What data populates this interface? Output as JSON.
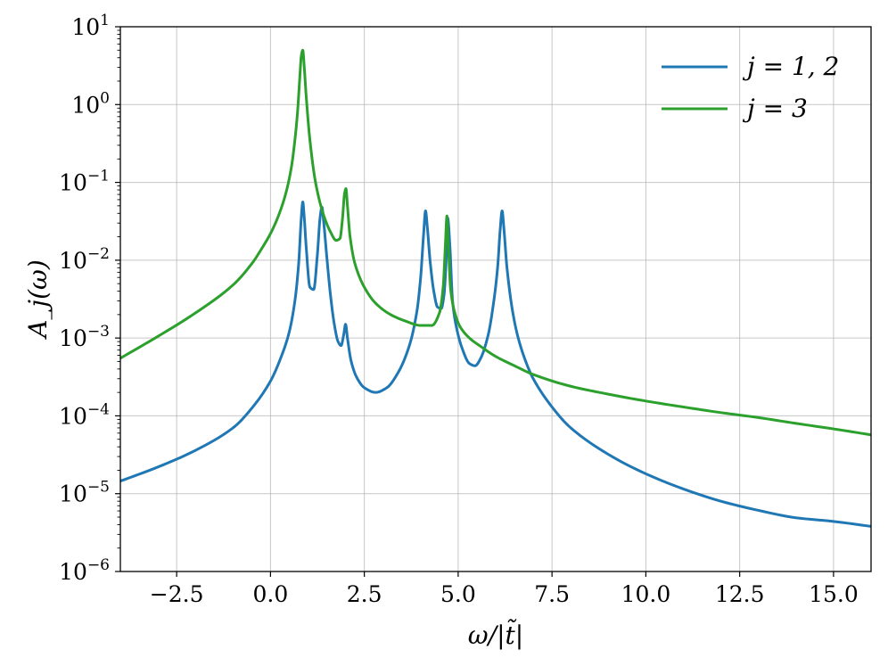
{
  "chart_data": {
    "type": "line",
    "title": "",
    "xlabel": "ω/|t̃|",
    "ylabel": "A_j(ω)",
    "xlim": [
      -4.0,
      16.0
    ],
    "ylim": [
      1e-06,
      10
    ],
    "yscale": "log",
    "grid": true,
    "legend_placement": "top-right",
    "x_ticks": [
      {
        "value": -2.5,
        "label": "−2.5"
      },
      {
        "value": 0.0,
        "label": "0.0"
      },
      {
        "value": 2.5,
        "label": "2.5"
      },
      {
        "value": 5.0,
        "label": "5.0"
      },
      {
        "value": 7.5,
        "label": "7.5"
      },
      {
        "value": 10.0,
        "label": "10.0"
      },
      {
        "value": 12.5,
        "label": "12.5"
      },
      {
        "value": 15.0,
        "label": "15.0"
      }
    ],
    "y_ticks": [
      {
        "value": 1e-06,
        "base": "10",
        "exp": "−6"
      },
      {
        "value": 1e-05,
        "base": "10",
        "exp": "−5"
      },
      {
        "value": 0.0001,
        "base": "10",
        "exp": "−4"
      },
      {
        "value": 0.001,
        "base": "10",
        "exp": "−3"
      },
      {
        "value": 0.01,
        "base": "10",
        "exp": "−2"
      },
      {
        "value": 0.1,
        "base": "10",
        "exp": "−1"
      },
      {
        "value": 1,
        "base": "10",
        "exp": "0"
      },
      {
        "value": 10,
        "base": "10",
        "exp": "1"
      }
    ],
    "series": [
      {
        "name": "j = 1, 2",
        "color": "#1f77b4",
        "x": [
          -4.0,
          -3.0,
          -2.0,
          -1.0,
          -0.5,
          0.0,
          0.3,
          0.5,
          0.65,
          0.75,
          0.82,
          0.86,
          0.9,
          0.95,
          1.05,
          1.15,
          1.25,
          1.32,
          1.37,
          1.42,
          1.5,
          1.6,
          1.7,
          1.8,
          1.88,
          1.95,
          2.0,
          2.05,
          2.15,
          2.3,
          2.5,
          2.8,
          3.1,
          3.4,
          3.7,
          3.9,
          4.0,
          4.08,
          4.13,
          4.18,
          4.25,
          4.35,
          4.45,
          4.55,
          4.62,
          4.67,
          4.72,
          4.78,
          4.85,
          4.95,
          5.1,
          5.3,
          5.45,
          5.6,
          5.8,
          5.95,
          6.05,
          6.12,
          6.17,
          6.22,
          6.3,
          6.45,
          6.6,
          6.8,
          7.0,
          7.5,
          8.0,
          9.0,
          10.0,
          11.0,
          12.0,
          13.0,
          14.0,
          15.0,
          16.0
        ],
        "y": [
          1.45e-05,
          2.2e-05,
          3.6e-05,
          7e-05,
          0.000125,
          0.00028,
          0.0006,
          0.0012,
          0.003,
          0.009,
          0.035,
          0.056,
          0.035,
          0.015,
          0.0045,
          0.0042,
          0.012,
          0.035,
          0.048,
          0.03,
          0.011,
          0.0035,
          0.0015,
          0.0009,
          0.0008,
          0.0011,
          0.0015,
          0.001,
          0.0005,
          0.00031,
          0.00023,
          0.0002,
          0.00023,
          0.00036,
          0.0008,
          0.0022,
          0.006,
          0.022,
          0.043,
          0.026,
          0.01,
          0.004,
          0.0025,
          0.0024,
          0.0035,
          0.008,
          0.035,
          0.015,
          0.003,
          0.0014,
          0.00075,
          0.00047,
          0.00044,
          0.00055,
          0.0011,
          0.003,
          0.008,
          0.025,
          0.043,
          0.025,
          0.008,
          0.0022,
          0.001,
          0.0005,
          0.0003,
          0.00013,
          7e-05,
          3.2e-05,
          1.8e-05,
          1.15e-05,
          8e-06,
          6.1e-06,
          4.9e-06,
          4.4e-06,
          3.8e-06
        ]
      },
      {
        "name": "j = 3",
        "color": "#2ca02c",
        "x": [
          -4.0,
          -3.0,
          -2.0,
          -1.0,
          -0.5,
          -0.2,
          0.0,
          0.2,
          0.4,
          0.55,
          0.65,
          0.72,
          0.78,
          0.82,
          0.86,
          0.9,
          0.95,
          1.05,
          1.2,
          1.4,
          1.6,
          1.75,
          1.85,
          1.92,
          1.97,
          2.01,
          2.05,
          2.12,
          2.25,
          2.5,
          2.8,
          3.2,
          3.6,
          4.0,
          4.3,
          4.5,
          4.6,
          4.66,
          4.7,
          4.74,
          4.8,
          4.9,
          5.05,
          5.3,
          5.6,
          6.0,
          6.5,
          7.0,
          8.0,
          9.0,
          10.0,
          11.0,
          12.0,
          13.0,
          14.0,
          15.0,
          16.0
        ],
        "y": [
          0.00055,
          0.00105,
          0.0021,
          0.0048,
          0.009,
          0.015,
          0.022,
          0.036,
          0.07,
          0.15,
          0.35,
          0.8,
          2.2,
          4.2,
          5.0,
          3.0,
          1.3,
          0.35,
          0.1,
          0.04,
          0.023,
          0.018,
          0.019,
          0.035,
          0.07,
          0.083,
          0.05,
          0.02,
          0.009,
          0.0045,
          0.0028,
          0.002,
          0.00165,
          0.00145,
          0.00145,
          0.0021,
          0.0045,
          0.016,
          0.037,
          0.015,
          0.0042,
          0.0022,
          0.0014,
          0.001,
          0.00078,
          0.00058,
          0.00044,
          0.00034,
          0.00024,
          0.00019,
          0.000155,
          0.00013,
          0.00011,
          9.5e-05,
          8e-05,
          6.8e-05,
          5.7e-05
        ]
      }
    ]
  }
}
